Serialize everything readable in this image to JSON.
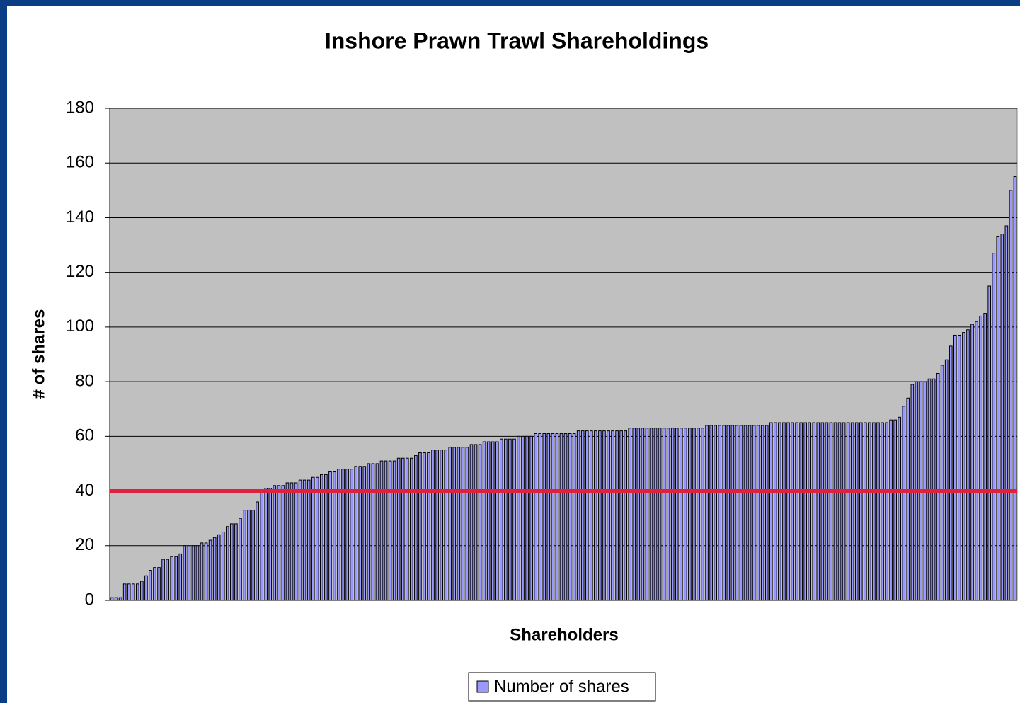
{
  "chart_data": {
    "type": "bar",
    "title": "Inshore Prawn Trawl Shareholdings",
    "xlabel": "Shareholders",
    "ylabel": "# of shares",
    "categories": [
      null,
      null,
      null,
      null,
      null,
      null,
      null,
      null,
      null,
      null,
      null,
      null,
      null,
      null,
      null,
      null,
      null,
      null,
      null,
      null,
      null,
      null,
      null,
      null,
      null,
      null,
      null,
      null,
      null,
      null,
      null,
      null,
      null,
      null,
      null,
      null,
      null,
      null,
      null,
      null,
      null,
      null,
      null,
      null,
      null,
      null,
      null,
      null,
      null,
      null,
      null,
      null,
      null,
      null,
      null,
      null,
      null,
      null,
      null,
      null,
      null,
      null,
      null,
      null,
      null,
      null,
      null,
      null,
      null,
      null,
      null,
      null,
      null,
      null,
      null,
      null,
      null,
      null,
      null,
      null,
      null,
      null,
      null,
      null,
      null,
      null,
      null,
      null,
      null,
      null,
      null,
      null,
      null,
      null,
      null,
      null,
      null,
      null,
      null,
      null,
      null,
      null,
      null,
      null,
      null,
      null,
      null,
      null,
      null,
      null,
      null,
      null,
      null,
      null,
      null,
      null,
      null,
      null,
      null,
      null,
      null,
      null,
      null,
      null,
      null,
      null,
      null,
      null,
      null,
      null,
      null,
      null,
      null,
      null,
      null,
      null,
      null,
      null,
      null,
      null,
      null,
      null,
      null,
      null,
      null,
      null,
      null,
      null,
      null,
      null,
      null,
      null,
      null,
      null,
      null,
      null,
      null,
      null,
      null,
      null,
      null,
      null,
      null,
      null,
      null,
      null,
      null,
      null,
      null,
      null,
      null,
      null,
      null,
      null,
      null,
      null,
      null,
      null,
      null,
      null,
      null,
      null,
      null,
      null,
      null,
      null,
      null,
      null,
      null,
      null,
      null,
      null,
      null,
      null,
      null,
      null,
      null,
      null,
      null,
      null,
      null,
      null,
      null,
      null,
      null,
      null,
      null,
      null,
      null,
      null,
      null,
      null
    ],
    "series": [
      {
        "name": "Number of shares",
        "color": "#9999ff",
        "values": [
          1,
          1,
          1,
          6,
          6,
          6,
          6,
          7,
          9,
          11,
          12,
          12,
          15,
          15,
          16,
          16,
          17,
          20,
          20,
          20,
          20,
          21,
          21,
          22,
          23,
          24,
          25,
          27,
          28,
          28,
          30,
          33,
          33,
          33,
          36,
          40,
          41,
          41,
          42,
          42,
          42,
          43,
          43,
          43,
          44,
          44,
          44,
          45,
          45,
          46,
          46,
          47,
          47,
          48,
          48,
          48,
          48,
          49,
          49,
          49,
          50,
          50,
          50,
          51,
          51,
          51,
          51,
          52,
          52,
          52,
          52,
          53,
          54,
          54,
          54,
          55,
          55,
          55,
          55,
          56,
          56,
          56,
          56,
          56,
          57,
          57,
          57,
          58,
          58,
          58,
          58,
          59,
          59,
          59,
          59,
          60,
          60,
          60,
          60,
          61,
          61,
          61,
          61,
          61,
          61,
          61,
          61,
          61,
          61,
          62,
          62,
          62,
          62,
          62,
          62,
          62,
          62,
          62,
          62,
          62,
          62,
          63,
          63,
          63,
          63,
          63,
          63,
          63,
          63,
          63,
          63,
          63,
          63,
          63,
          63,
          63,
          63,
          63,
          63,
          64,
          64,
          64,
          64,
          64,
          64,
          64,
          64,
          64,
          64,
          64,
          64,
          64,
          64,
          64,
          65,
          65,
          65,
          65,
          65,
          65,
          65,
          65,
          65,
          65,
          65,
          65,
          65,
          65,
          65,
          65,
          65,
          65,
          65,
          65,
          65,
          65,
          65,
          65,
          65,
          65,
          65,
          65,
          66,
          66,
          67,
          71,
          74,
          79,
          80,
          80,
          80,
          81,
          81,
          83,
          86,
          88,
          93,
          97,
          97,
          98,
          99,
          101,
          102,
          104,
          105,
          115,
          127,
          133,
          134,
          137,
          150,
          155
        ]
      }
    ],
    "reference_line": {
      "value": 40,
      "color": "#e0203c"
    },
    "ylim": [
      0,
      180
    ],
    "yticks": [
      0,
      20,
      40,
      60,
      80,
      100,
      120,
      140,
      160,
      180
    ],
    "grid": true,
    "legend": "bottom",
    "plot_background": "#c0c0c0"
  }
}
